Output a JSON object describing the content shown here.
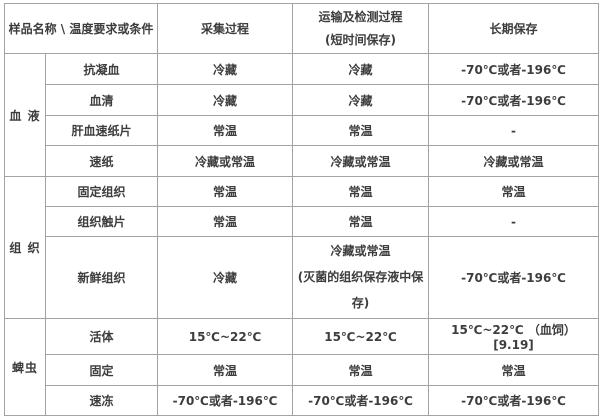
{
  "table": {
    "header": {
      "col_sample": "样品名称 \\ 温度要求或条件",
      "col_collection": "采集过程",
      "col_transport_line1": "运输及检测过程",
      "col_transport_line2": "(短时间保存)",
      "col_longterm": "长期保存"
    },
    "groups": [
      {
        "name": "血 液",
        "rows": [
          {
            "item": "抗凝血",
            "collection": "冷藏",
            "transport": "冷藏",
            "longterm": "-70℃或者-196℃"
          },
          {
            "item": "血清",
            "collection": "冷藏",
            "transport": "冷藏",
            "longterm": "-70℃或者-196℃"
          },
          {
            "item": "肝血速纸片",
            "collection": "常温",
            "transport": "常温",
            "longterm": "-"
          },
          {
            "item": "速纸",
            "collection": "冷藏或常温",
            "transport": "冷藏或常温",
            "longterm": "冷藏或常温"
          }
        ]
      },
      {
        "name": "组 织",
        "rows": [
          {
            "item": "固定组织",
            "collection": "常温",
            "transport": "常温",
            "longterm": "常温"
          },
          {
            "item": "组织触片",
            "collection": "常温",
            "transport": "常温",
            "longterm": "-"
          },
          {
            "item": "新鲜组织",
            "collection": "冷藏",
            "transport": "冷藏或常温",
            "transport_note": "(灭菌的组织保存液中保存)",
            "longterm": "-70℃或者-196℃"
          }
        ]
      },
      {
        "name": "蜱虫",
        "rows": [
          {
            "item": "活体",
            "collection": "15℃~22℃",
            "transport": "15℃~22℃",
            "longterm": "15℃~22℃ （血饲） [9.19]"
          },
          {
            "item": "固定",
            "collection": "常温",
            "transport": "常温",
            "longterm": "常温"
          },
          {
            "item": "速冻",
            "collection": "-70℃或者-196℃",
            "transport": "-70℃或者-196℃",
            "longterm": "-70℃或者-196℃"
          }
        ]
      }
    ]
  },
  "colors": {
    "background": "#ffffff",
    "border": "#a3a3a3",
    "text": "#3d3d3d"
  }
}
